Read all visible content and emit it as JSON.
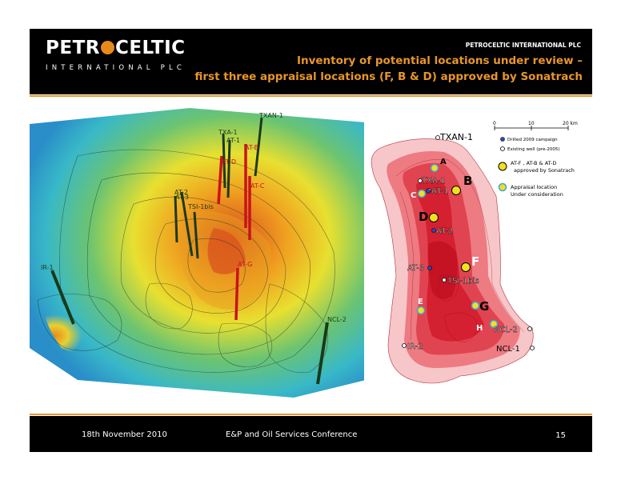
{
  "header": {
    "logo_top": "PETROCELTIC",
    "logo_bottom": "INTERNATIONAL PLC",
    "company": "PETROCELTIC INTERNATIONAL PLC",
    "title_line1": "Inventory of potential locations under review –",
    "title_line2": "first three appraisal locations (F, B & D) approved by Sonatrach"
  },
  "map3d": {
    "wells": [
      {
        "label": "TXAN-1",
        "color": "#1a3a1a"
      },
      {
        "label": "TXA-1",
        "color": "#1a3a1a"
      },
      {
        "label": "AT-1",
        "color": "#1a3a1a"
      },
      {
        "label": "AT-B",
        "color": "#c8141e"
      },
      {
        "label": "AT-D",
        "color": "#c8141e"
      },
      {
        "label": "AT-C",
        "color": "#c8141e"
      },
      {
        "label": "AT-2",
        "color": "#1a3a1a"
      },
      {
        "label": "AT-3",
        "color": "#1a3a1a"
      },
      {
        "label": "TSI-1bis",
        "color": "#1a3a1a"
      },
      {
        "label": "AT-G",
        "color": "#c8141e"
      },
      {
        "label": "IR-1",
        "color": "#1a3a1a"
      },
      {
        "label": "NCL-2",
        "color": "#1a3a1a"
      }
    ]
  },
  "map2d": {
    "scale_labels": [
      "0",
      "10",
      "20 km"
    ],
    "legend": [
      {
        "label": "Drilled 2009 campaign",
        "type": "blue"
      },
      {
        "label": "Existing well (pre-2005)",
        "type": "white"
      },
      {
        "label": "AT-F , AT-B  & AT-D",
        "label2": "approved  by Sonatrach",
        "type": "yellow"
      },
      {
        "label": "Appraisal location",
        "label2": "Under consideration",
        "type": "yellow-blue"
      }
    ],
    "wells": [
      "TXAN-1",
      "TXA-1",
      "AT-1",
      "AT-2",
      "AT-3",
      "TSI-1bis",
      "IR-2",
      "NCL-2",
      "NCL-1"
    ],
    "locations": [
      "A",
      "B",
      "C",
      "D",
      "E",
      "F",
      "G",
      "H"
    ]
  },
  "footer": {
    "date": "18th November 2010",
    "conference": "E&P and Oil Services Conference",
    "page": "15"
  }
}
